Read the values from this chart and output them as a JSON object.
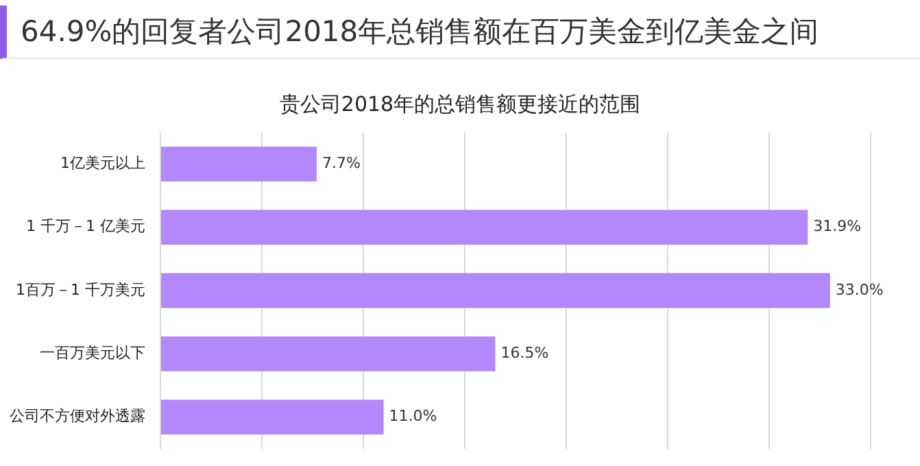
{
  "chart_data": {
    "type": "bar",
    "orientation": "horizontal",
    "title": "64.9%的回复者公司2018年总销售额在百万美金到亿美金之间",
    "subtitle": "贵公司2018年的总销售额更接近的范围",
    "categories": [
      "1亿美元以上",
      "1 千万－1 亿美元",
      "1百万－1 千万美元",
      "一百万美元以下",
      "公司不方便对外透露"
    ],
    "values": [
      7.7,
      31.9,
      33.0,
      16.5,
      11.0
    ],
    "value_labels": [
      "7.7%",
      "31.9%",
      "33.0%",
      "16.5%",
      "11.0%"
    ],
    "color": "#b388fa",
    "xlim": [
      0,
      35
    ],
    "xticks": [
      {
        "value": 0,
        "label": null
      },
      {
        "value": 5,
        "label": null
      },
      {
        "value": 10,
        "label": null
      },
      {
        "value": 15,
        "label": null
      },
      {
        "value": 20,
        "label": null
      },
      {
        "value": 25,
        "label": null
      },
      {
        "value": 30,
        "label": null
      },
      {
        "value": 35,
        "label": null
      }
    ],
    "grid": "x",
    "tick_labels": "y",
    "legend": false
  }
}
